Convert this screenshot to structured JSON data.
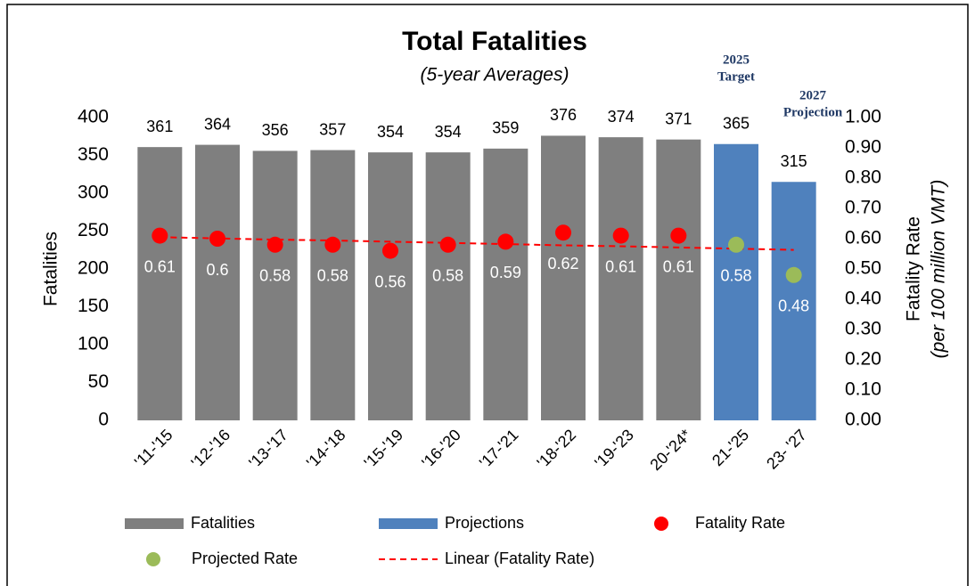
{
  "chart_data": {
    "type": "bar",
    "title": "Total Fatalities",
    "subtitle": "(5-year Averages)",
    "ylabel": "Fatalities",
    "y2label": [
      "Fatality Rate",
      "(per 100 million VMT)"
    ],
    "annotations": [
      [
        "2025",
        "Target"
      ],
      [
        "2027",
        "Projection"
      ]
    ],
    "categories": [
      "'11-'15",
      "'12-'16",
      "'13-'17",
      "'14-'18",
      "'15-'19",
      "'16-'20",
      "'17-'21",
      "'18-'22",
      "'19-'23",
      "20-'24*",
      "21-'25",
      "23- '27"
    ],
    "series": [
      {
        "name": "Fatalities",
        "type": "bar",
        "color": "#7f7f7f",
        "values": [
          361,
          364,
          356,
          357,
          354,
          354,
          359,
          376,
          374,
          371,
          null,
          null
        ]
      },
      {
        "name": "Projections",
        "type": "bar",
        "color": "#4f81bd",
        "values": [
          null,
          null,
          null,
          null,
          null,
          null,
          null,
          null,
          null,
          null,
          365,
          315
        ]
      },
      {
        "name": "Fatality Rate",
        "type": "scatter",
        "axis": "y2",
        "color": "#ff0000",
        "values": [
          0.61,
          0.6,
          0.58,
          0.58,
          0.56,
          0.58,
          0.59,
          0.62,
          0.61,
          0.61,
          null,
          null
        ]
      },
      {
        "name": "Projected Rate",
        "type": "scatter",
        "axis": "y2",
        "color": "#9bbb59",
        "values": [
          null,
          null,
          null,
          null,
          null,
          null,
          null,
          null,
          null,
          null,
          0.58,
          0.48
        ]
      },
      {
        "name": "Linear (Fatality Rate)",
        "type": "line",
        "axis": "y2",
        "color": "#ff0000",
        "dashed": true,
        "values": [
          0.605,
          0.601,
          0.597,
          0.594,
          0.59,
          0.586,
          0.582,
          0.578,
          0.575,
          0.571,
          0.567,
          0.563
        ]
      }
    ],
    "ylim": [
      0,
      400
    ],
    "yticks": [
      0,
      50,
      100,
      150,
      200,
      250,
      300,
      350,
      400
    ],
    "y2lim": [
      0,
      1
    ],
    "y2ticks": [
      {
        "value": 0,
        "label": "0.00"
      },
      {
        "value": 0.1,
        "label": "0.10"
      },
      {
        "value": 0.2,
        "label": "0.20"
      },
      {
        "value": 0.3,
        "label": "0.30"
      },
      {
        "value": 0.4,
        "label": "0.40"
      },
      {
        "value": 0.5,
        "label": "0.50"
      },
      {
        "value": 0.6,
        "label": "0.60"
      },
      {
        "value": 0.7,
        "label": "0.70"
      },
      {
        "value": 0.8,
        "label": "0.80"
      },
      {
        "value": 0.9,
        "label": "0.90"
      },
      {
        "value": 1,
        "label": "1.00"
      }
    ],
    "grid": false,
    "legend": "bottom"
  }
}
